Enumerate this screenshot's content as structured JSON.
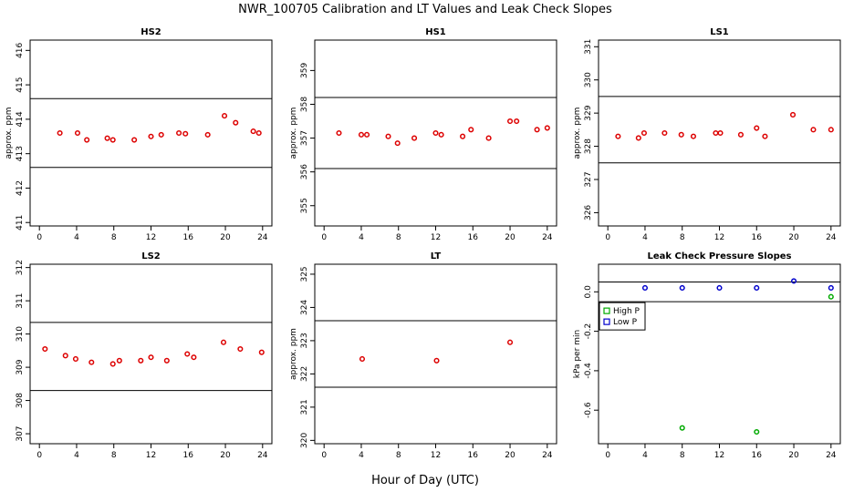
{
  "figure": {
    "title": "NWR_100705  Calibration and LT Values and Leak Check Slopes",
    "xlabel": "Hour of Day (UTC)"
  },
  "colors": {
    "cal": "#dd0000",
    "high": "#00aa00",
    "low": "#0000cc",
    "axis": "#000000"
  },
  "chart_data": [
    {
      "type": "scatter",
      "title": "HS2",
      "ylabel": "approx. ppm",
      "xlim": [
        -1,
        25
      ],
      "ylim": [
        410.9,
        416.3
      ],
      "xticks": [
        0,
        4,
        8,
        12,
        16,
        20,
        24
      ],
      "yticks": [
        411,
        412,
        413,
        414,
        415,
        416
      ],
      "hlines": [
        412.6,
        414.6
      ],
      "series": [
        {
          "color": "cal",
          "x": [
            2.2,
            4.1,
            5.1,
            7.3,
            7.9,
            10.2,
            12.0,
            13.1,
            15.0,
            15.7,
            18.1,
            19.9,
            21.1,
            23.0,
            23.6
          ],
          "y": [
            413.6,
            413.6,
            413.4,
            413.45,
            413.4,
            413.4,
            413.5,
            413.55,
            413.6,
            413.58,
            413.55,
            414.1,
            413.9,
            413.65,
            413.6
          ]
        }
      ]
    },
    {
      "type": "scatter",
      "title": "HS1",
      "ylabel": "approx. ppm",
      "xlim": [
        -1,
        25
      ],
      "ylim": [
        354.4,
        359.9
      ],
      "xticks": [
        0,
        4,
        8,
        12,
        16,
        20,
        24
      ],
      "yticks": [
        355,
        356,
        357,
        358,
        359
      ],
      "hlines": [
        356.1,
        358.2
      ],
      "series": [
        {
          "color": "cal",
          "x": [
            1.6,
            4.0,
            4.6,
            6.9,
            7.9,
            9.7,
            12.0,
            12.6,
            14.9,
            15.8,
            17.7,
            20.0,
            20.7,
            22.9,
            24.0
          ],
          "y": [
            357.15,
            357.1,
            357.1,
            357.05,
            356.85,
            357.0,
            357.15,
            357.1,
            357.05,
            357.25,
            357.0,
            357.5,
            357.5,
            357.25,
            357.3
          ]
        }
      ]
    },
    {
      "type": "scatter",
      "title": "LS1",
      "ylabel": "approx. ppm",
      "xlim": [
        -1,
        25
      ],
      "ylim": [
        325.6,
        331.2
      ],
      "xticks": [
        0,
        4,
        8,
        12,
        16,
        20,
        24
      ],
      "yticks": [
        326,
        327,
        328,
        329,
        330,
        331
      ],
      "hlines": [
        327.5,
        329.5
      ],
      "series": [
        {
          "color": "cal",
          "x": [
            1.1,
            3.3,
            3.9,
            6.1,
            7.9,
            9.2,
            11.6,
            12.1,
            14.3,
            16.0,
            16.9,
            19.9,
            22.1,
            24.0
          ],
          "y": [
            328.3,
            328.25,
            328.4,
            328.4,
            328.35,
            328.3,
            328.4,
            328.4,
            328.35,
            328.55,
            328.3,
            328.95,
            328.5,
            328.5
          ]
        }
      ]
    },
    {
      "type": "scatter",
      "title": "LS2",
      "ylabel": "",
      "xlim": [
        -1,
        25
      ],
      "ylim": [
        306.7,
        312.1
      ],
      "xticks": [
        0,
        4,
        8,
        12,
        16,
        20,
        24
      ],
      "yticks": [
        307,
        308,
        309,
        310,
        311,
        312
      ],
      "hlines": [
        308.3,
        310.35
      ],
      "series": [
        {
          "color": "cal",
          "x": [
            0.6,
            2.8,
            3.9,
            5.6,
            7.9,
            8.6,
            10.9,
            12.0,
            13.7,
            15.9,
            16.6,
            19.8,
            21.6,
            23.9
          ],
          "y": [
            309.55,
            309.35,
            309.25,
            309.15,
            309.1,
            309.2,
            309.2,
            309.3,
            309.2,
            309.4,
            309.3,
            309.75,
            309.55,
            309.45
          ]
        }
      ]
    },
    {
      "type": "scatter",
      "title": "LT",
      "ylabel": "approx. ppm",
      "xlim": [
        -1,
        25
      ],
      "ylim": [
        319.9,
        325.3
      ],
      "xticks": [
        0,
        4,
        8,
        12,
        16,
        20,
        24
      ],
      "yticks": [
        320,
        321,
        322,
        323,
        324,
        325
      ],
      "hlines": [
        321.6,
        323.6
      ],
      "series": [
        {
          "color": "cal",
          "x": [
            4.1,
            12.1,
            20.0
          ],
          "y": [
            322.45,
            322.4,
            322.95
          ]
        }
      ]
    },
    {
      "type": "scatter",
      "title": "Leak Check Pressure Slopes",
      "ylabel": "kPa per min",
      "xlim": [
        -1,
        25
      ],
      "ylim": [
        -0.77,
        0.14
      ],
      "xticks": [
        0,
        4,
        8,
        12,
        16,
        20,
        24
      ],
      "yticks": [
        0.0,
        -0.2,
        -0.4,
        -0.6
      ],
      "ytick_labels": [
        "0.0",
        "-0.2",
        "-0.4",
        "-0.6"
      ],
      "hlines": [
        0.05,
        -0.05
      ],
      "legend": {
        "position": "left",
        "entries": [
          {
            "label": "High P",
            "color": "high"
          },
          {
            "label": "Low P",
            "color": "low"
          }
        ]
      },
      "series": [
        {
          "name": "High P",
          "color": "high",
          "x": [
            8,
            16,
            24
          ],
          "y": [
            -0.69,
            -0.71,
            -0.025
          ]
        },
        {
          "name": "Low P",
          "color": "low",
          "x": [
            4,
            8,
            12,
            16,
            20,
            24
          ],
          "y": [
            0.02,
            0.02,
            0.02,
            0.02,
            0.055,
            0.02
          ]
        }
      ]
    }
  ]
}
